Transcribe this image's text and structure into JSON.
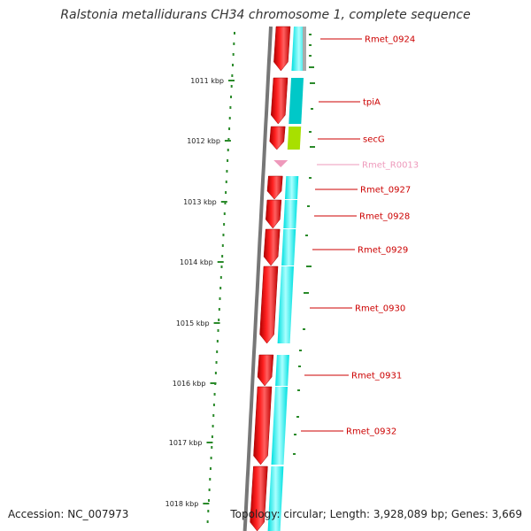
{
  "title": "Ralstonia metallidurans CH34 chromosome 1, complete sequence",
  "footer": {
    "accession": "Accession: NC_007973",
    "summary": "Topology: circular; Length: 3,928,089 bp; Genes: 3,669"
  },
  "colors": {
    "cds": "#ff0000",
    "gene_bar": "#00ffff",
    "secg_bar": "#a8e000",
    "tpia_bar": "#00c8c8",
    "rna": "#ee99bb",
    "label": "#cc0000",
    "rna_label": "#ee99bb",
    "backbone": "#777777",
    "gc_dots": "#2a8a2a"
  },
  "ticks": [
    {
      "label": "1011 kbp"
    },
    {
      "label": "1012 kbp"
    },
    {
      "label": "1013 kbp"
    },
    {
      "label": "1014 kbp"
    },
    {
      "label": "1015 kbp"
    },
    {
      "label": "1016 kbp"
    },
    {
      "label": "1017 kbp"
    },
    {
      "label": "1018 kbp"
    }
  ],
  "features": [
    {
      "label": "Rmet_0924",
      "type": "CDS",
      "strand": "reverse"
    },
    {
      "label": "tpiA",
      "type": "CDS",
      "strand": "reverse"
    },
    {
      "label": "secG",
      "type": "CDS",
      "strand": "reverse"
    },
    {
      "label": "Rmet_R0013",
      "type": "tRNA",
      "strand": "reverse"
    },
    {
      "label": "Rmet_0927",
      "type": "CDS",
      "strand": "reverse"
    },
    {
      "label": "Rmet_0928",
      "type": "CDS",
      "strand": "reverse"
    },
    {
      "label": "Rmet_0929",
      "type": "CDS",
      "strand": "reverse"
    },
    {
      "label": "Rmet_0930",
      "type": "CDS",
      "strand": "reverse"
    },
    {
      "label": "Rmet_0931",
      "type": "CDS",
      "strand": "reverse"
    },
    {
      "label": "Rmet_0932",
      "type": "CDS",
      "strand": "reverse"
    }
  ]
}
